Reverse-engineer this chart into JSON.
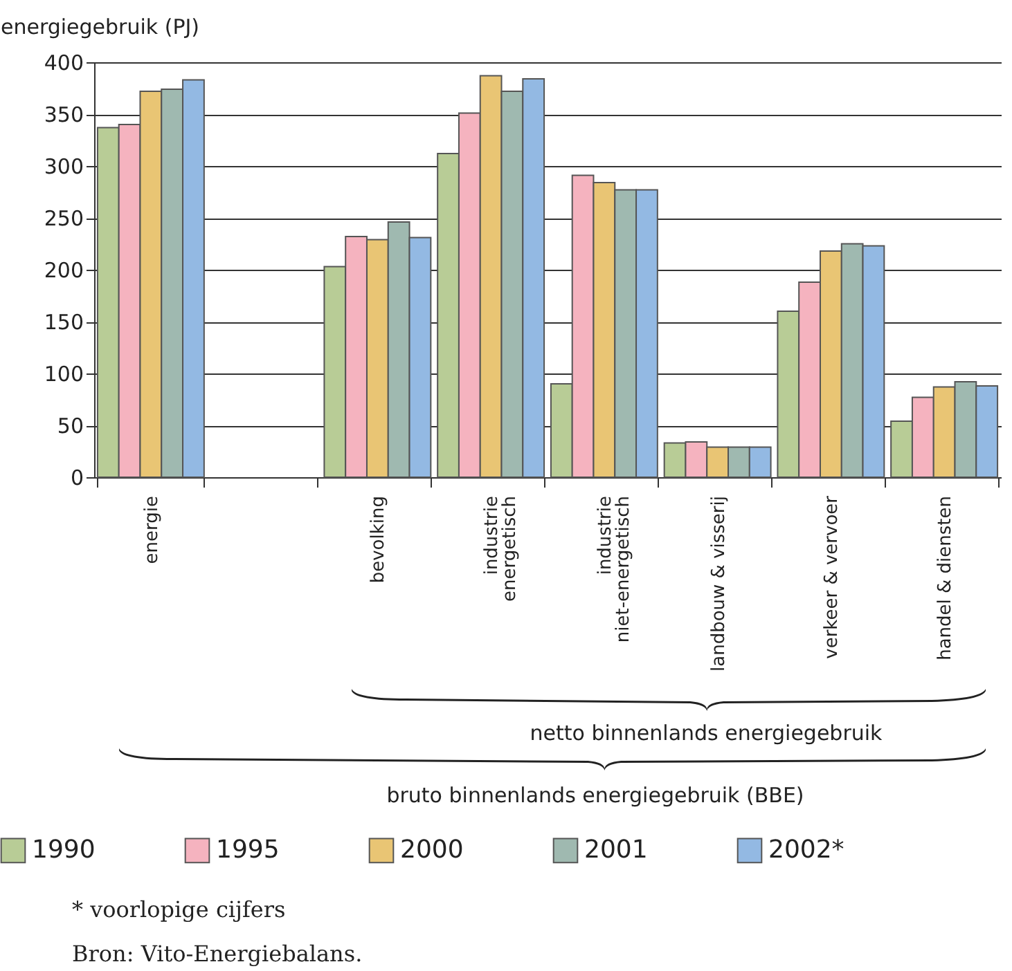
{
  "chart_data": {
    "type": "bar",
    "ylabel": "energiegebruik (PJ)",
    "categories": [
      "energie",
      null,
      "bevolking",
      "industrie\nenergetisch",
      "industrie\nniet-energetisch",
      "landbouw & visserij",
      "verkeer & vervoer",
      "handel & diensten"
    ],
    "series": [
      {
        "name": "1990",
        "color": "#b8cc96",
        "values": [
          337,
          null,
          203,
          312,
          90,
          33,
          160,
          54
        ]
      },
      {
        "name": "1995",
        "color": "#f5b3bf",
        "values": [
          340,
          null,
          232,
          351,
          291,
          34,
          188,
          77
        ]
      },
      {
        "name": "2000",
        "color": "#e9c574",
        "values": [
          372,
          null,
          229,
          387,
          284,
          29,
          218,
          87
        ]
      },
      {
        "name": "2001",
        "color": "#9fb9b0",
        "values": [
          374,
          null,
          246,
          372,
          277,
          29,
          225,
          92
        ]
      },
      {
        "name": "2002*",
        "color": "#93b9e3",
        "values": [
          383,
          null,
          231,
          384,
          277,
          29,
          223,
          88
        ]
      }
    ],
    "ylim": [
      0,
      400
    ],
    "yticks": [
      0,
      50,
      100,
      150,
      200,
      250,
      300,
      350,
      400
    ],
    "grid": "y",
    "legend": "bottom",
    "annotations": [
      "netto binnenlands energiegebruik",
      "bruto binnenlands energiegebruik (BBE)",
      "* voorlopige cijfers",
      "Bron: Vito-Energiebalans."
    ]
  }
}
